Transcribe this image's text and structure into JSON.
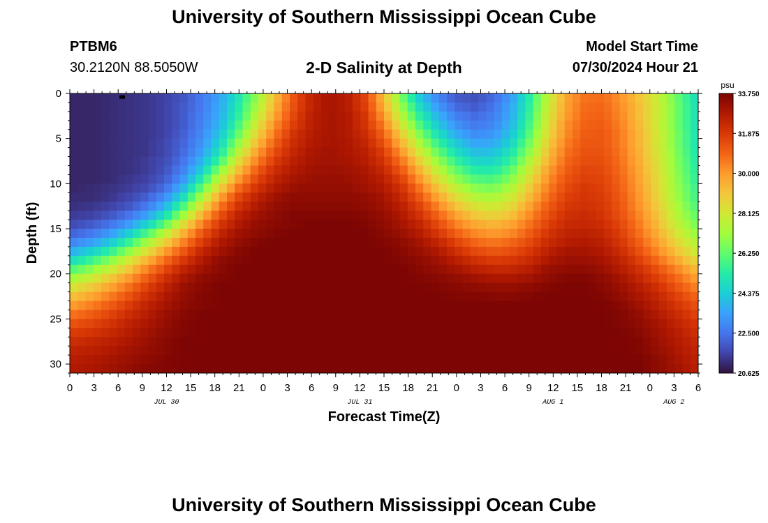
{
  "header": {
    "title": "University of Southern Mississippi Ocean Cube",
    "station": "PTBM6",
    "coordinates": "30.2120N  88.5050W",
    "subtitle": "2-D Salinity at Depth",
    "model_start_label": "Model Start Time",
    "model_start_value": "07/30/2024 Hour 21"
  },
  "footer": {
    "title": "University of Southern Mississippi Ocean Cube"
  },
  "colors": {
    "background": "#ffffff",
    "text": "#000000",
    "colormap": [
      "#30123b",
      "#4145ab",
      "#4675ed",
      "#39a2fc",
      "#1bcfd4",
      "#24eca6",
      "#61fc6c",
      "#a4fc3b",
      "#d1e834",
      "#f3c63a",
      "#fe9b2d",
      "#f36315",
      "#d93806",
      "#b11901",
      "#7a0403"
    ]
  },
  "chart_data": {
    "type": "heatmap",
    "title": "2-D Salinity at Depth",
    "xlabel": "Forecast Time(Z)",
    "ylabel": "Depth (ft)",
    "x_tick_labels": [
      "0",
      "3",
      "6",
      "9",
      "12",
      "15",
      "18",
      "21",
      "0",
      "3",
      "6",
      "9",
      "12",
      "15",
      "18",
      "21",
      "0",
      "3",
      "6",
      "9",
      "12",
      "15",
      "18",
      "21",
      "0",
      "3",
      "6"
    ],
    "x_range_hours": [
      0,
      78
    ],
    "day_labels": [
      {
        "text": "JUL 30",
        "hour": 12
      },
      {
        "text": "JUL 31",
        "hour": 36
      },
      {
        "text": "AUG 1",
        "hour": 60
      },
      {
        "text": "AUG 2",
        "hour": 75
      }
    ],
    "y_tick_labels": [
      "0",
      "5",
      "10",
      "15",
      "20",
      "25",
      "30"
    ],
    "y_range_ft": [
      0,
      31
    ],
    "y_inverted": true,
    "colorbar": {
      "unit": "psu",
      "min": 20.625,
      "max": 33.75,
      "tick_labels": [
        "33.750",
        "31.875",
        "30.000",
        "28.125",
        "26.250",
        "24.375",
        "22.500",
        "20.625"
      ]
    },
    "model_start_marker": {
      "hour": 6.5,
      "depth": 0.2
    },
    "grid": {
      "nx": 80,
      "ny": 31
    },
    "salinity_psu": [
      [
        21.0,
        21.0,
        21.1,
        21.2,
        21.3,
        21.5,
        21.9,
        22.6,
        23.5,
        25.0,
        26.9,
        29.2,
        31.2,
        32.5,
        33.0,
        32.7,
        31.6,
        29.3,
        26.5,
        24.2,
        22.8,
        22.0,
        21.8,
        22.3,
        23.4,
        25.4,
        27.8,
        29.8,
        30.7,
        30.8,
        30.1,
        29.1,
        27.9,
        26.4,
        25.0
      ],
      [
        21.0,
        21.0,
        21.1,
        21.2,
        21.3,
        21.5,
        22.0,
        22.6,
        23.6,
        25.2,
        27.2,
        29.5,
        31.3,
        32.5,
        33.0,
        32.7,
        31.7,
        29.6,
        27.0,
        24.7,
        23.2,
        22.3,
        22.0,
        22.5,
        23.6,
        25.5,
        28.0,
        29.9,
        30.8,
        30.9,
        30.2,
        29.2,
        28.0,
        26.5,
        25.1
      ],
      [
        21.0,
        21.0,
        21.1,
        21.2,
        21.3,
        21.5,
        22.0,
        22.7,
        23.7,
        25.4,
        27.6,
        29.8,
        31.5,
        32.6,
        33.0,
        32.8,
        31.9,
        30.0,
        27.5,
        25.3,
        23.7,
        22.7,
        22.3,
        22.7,
        23.7,
        25.7,
        28.2,
        30.0,
        30.9,
        31.0,
        30.3,
        29.2,
        28.0,
        26.5,
        25.1
      ],
      [
        21.0,
        21.0,
        21.1,
        21.2,
        21.3,
        21.5,
        22.0,
        22.8,
        23.9,
        25.8,
        28.1,
        30.2,
        31.7,
        32.6,
        33.0,
        32.8,
        32.0,
        30.5,
        28.1,
        25.9,
        24.2,
        23.1,
        22.6,
        22.9,
        23.9,
        25.9,
        28.4,
        30.2,
        31.0,
        31.1,
        30.4,
        29.3,
        28.0,
        26.5,
        25.1
      ],
      [
        21.0,
        21.0,
        21.1,
        21.2,
        21.3,
        21.5,
        22.1,
        22.9,
        24.2,
        26.3,
        28.6,
        30.6,
        32.0,
        32.7,
        33.0,
        32.8,
        32.2,
        30.9,
        28.8,
        26.6,
        24.8,
        23.6,
        23.0,
        23.2,
        24.2,
        26.2,
        28.6,
        30.3,
        31.1,
        31.2,
        30.5,
        29.4,
        28.1,
        26.6,
        25.2
      ],
      [
        21.0,
        21.0,
        21.1,
        21.2,
        21.3,
        21.6,
        22.2,
        23.1,
        24.6,
        26.9,
        29.2,
        31.0,
        32.2,
        32.8,
        33.0,
        32.9,
        32.4,
        31.3,
        29.4,
        27.3,
        25.5,
        24.2,
        23.5,
        23.6,
        24.6,
        26.6,
        28.9,
        30.5,
        31.2,
        31.2,
        30.5,
        29.4,
        28.1,
        26.6,
        25.2
      ],
      [
        21.0,
        21.0,
        21.1,
        21.2,
        21.3,
        21.6,
        22.3,
        23.4,
        25.1,
        27.6,
        29.8,
        31.4,
        32.4,
        32.9,
        33.1,
        32.9,
        32.6,
        31.7,
        30.0,
        28.0,
        26.2,
        24.8,
        24.0,
        24.1,
        25.1,
        27.0,
        29.2,
        30.7,
        31.3,
        31.3,
        30.6,
        29.5,
        28.2,
        26.7,
        25.3
      ],
      [
        21.0,
        21.0,
        21.1,
        21.2,
        21.4,
        21.7,
        22.5,
        23.8,
        25.8,
        28.4,
        30.4,
        31.8,
        32.6,
        33.0,
        33.1,
        33.0,
        32.7,
        32.0,
        30.6,
        28.7,
        26.9,
        25.5,
        24.6,
        24.6,
        25.6,
        27.5,
        29.5,
        30.9,
        31.4,
        31.4,
        30.7,
        29.6,
        28.3,
        26.8,
        25.4
      ],
      [
        21.0,
        21.0,
        21.1,
        21.2,
        21.4,
        21.8,
        22.8,
        24.4,
        26.8,
        29.2,
        31.0,
        32.2,
        32.8,
        33.1,
        33.2,
        33.1,
        32.9,
        32.3,
        31.1,
        29.4,
        27.6,
        26.2,
        25.3,
        25.2,
        26.2,
        28.0,
        29.9,
        31.1,
        31.6,
        31.5,
        30.8,
        29.7,
        28.4,
        26.9,
        25.5
      ],
      [
        21.0,
        21.0,
        21.1,
        21.3,
        21.5,
        22.0,
        23.2,
        25.2,
        27.8,
        30.0,
        31.5,
        32.5,
        33.0,
        33.2,
        33.3,
        33.2,
        33.0,
        32.6,
        31.6,
        30.0,
        28.3,
        26.9,
        26.0,
        25.9,
        26.8,
        28.5,
        30.2,
        31.3,
        31.7,
        31.6,
        30.9,
        29.8,
        28.5,
        27.0,
        25.6
      ],
      [
        21.0,
        21.1,
        21.2,
        21.4,
        21.7,
        22.4,
        23.9,
        26.2,
        28.8,
        30.8,
        32.0,
        32.8,
        33.2,
        33.3,
        33.3,
        33.3,
        33.1,
        32.8,
        32.0,
        30.6,
        29.0,
        27.7,
        26.8,
        26.6,
        27.4,
        29.0,
        30.5,
        31.5,
        31.9,
        31.7,
        31.0,
        29.9,
        28.6,
        27.1,
        25.8
      ],
      [
        21.1,
        21.1,
        21.3,
        21.6,
        22.1,
        23.0,
        24.8,
        27.3,
        29.8,
        31.5,
        32.5,
        33.1,
        33.4,
        33.4,
        33.4,
        33.4,
        33.3,
        33.0,
        32.3,
        31.1,
        29.7,
        28.4,
        27.5,
        27.3,
        28.0,
        29.4,
        30.8,
        31.7,
        32.0,
        31.8,
        31.1,
        30.0,
        28.7,
        27.2,
        25.9
      ],
      [
        21.2,
        21.3,
        21.5,
        21.9,
        22.6,
        23.8,
        25.9,
        28.4,
        30.6,
        32.0,
        32.8,
        33.3,
        33.5,
        33.5,
        33.5,
        33.5,
        33.4,
        33.1,
        32.6,
        31.6,
        30.3,
        29.1,
        28.3,
        28.0,
        28.6,
        29.9,
        31.1,
        31.9,
        32.1,
        31.9,
        31.2,
        30.1,
        28.9,
        27.4,
        26.1
      ],
      [
        21.4,
        21.5,
        21.9,
        22.5,
        23.4,
        24.9,
        27.1,
        29.5,
        31.3,
        32.5,
        33.1,
        33.4,
        33.6,
        33.6,
        33.6,
        33.6,
        33.5,
        33.3,
        32.8,
        32.0,
        30.9,
        29.8,
        29.0,
        28.7,
        29.2,
        30.3,
        31.4,
        32.1,
        32.3,
        32.0,
        31.3,
        30.3,
        29.1,
        27.6,
        26.4
      ],
      [
        21.7,
        22.0,
        22.5,
        23.3,
        24.5,
        26.2,
        28.4,
        30.4,
        31.9,
        32.8,
        33.3,
        33.5,
        33.6,
        33.7,
        33.7,
        33.7,
        33.6,
        33.4,
        33.0,
        32.4,
        31.4,
        30.4,
        29.7,
        29.4,
        29.8,
        30.7,
        31.7,
        32.3,
        32.4,
        32.2,
        31.5,
        30.5,
        29.3,
        27.9,
        26.7
      ],
      [
        22.2,
        22.6,
        23.3,
        24.4,
        25.9,
        27.6,
        29.5,
        31.2,
        32.4,
        33.1,
        33.4,
        33.6,
        33.7,
        33.7,
        33.7,
        33.7,
        33.7,
        33.5,
        33.2,
        32.7,
        31.9,
        31.0,
        30.3,
        30.0,
        30.3,
        31.1,
        32.0,
        32.5,
        32.6,
        32.4,
        31.7,
        30.7,
        29.6,
        28.3,
        27.1
      ],
      [
        22.9,
        23.4,
        24.3,
        25.6,
        27.2,
        28.8,
        30.4,
        31.8,
        32.8,
        33.3,
        33.6,
        33.7,
        33.7,
        33.7,
        33.7,
        33.7,
        33.7,
        33.6,
        33.4,
        33.0,
        32.4,
        31.6,
        30.9,
        30.6,
        30.9,
        31.5,
        32.3,
        32.7,
        32.8,
        32.6,
        31.9,
        31.0,
        29.9,
        28.7,
        27.6
      ],
      [
        23.8,
        24.5,
        25.5,
        26.9,
        28.4,
        29.9,
        31.2,
        32.4,
        33.1,
        33.5,
        33.7,
        33.7,
        33.7,
        33.7,
        33.7,
        33.7,
        33.7,
        33.7,
        33.5,
        33.2,
        32.8,
        32.1,
        31.5,
        31.2,
        31.4,
        31.9,
        32.6,
        33.0,
        33.0,
        32.8,
        32.2,
        31.3,
        30.3,
        29.2,
        28.1
      ],
      [
        24.9,
        25.7,
        26.8,
        28.1,
        29.5,
        30.8,
        31.9,
        32.8,
        33.4,
        33.6,
        33.7,
        33.7,
        33.7,
        33.7,
        33.7,
        33.7,
        33.7,
        33.7,
        33.6,
        33.4,
        33.1,
        32.6,
        32.1,
        31.8,
        31.9,
        32.3,
        32.9,
        33.2,
        33.2,
        33.0,
        32.5,
        31.7,
        30.8,
        29.8,
        28.7
      ],
      [
        26.1,
        26.9,
        27.9,
        29.1,
        30.4,
        31.5,
        32.5,
        33.1,
        33.5,
        33.7,
        33.7,
        33.7,
        33.7,
        33.7,
        33.7,
        33.7,
        33.7,
        33.7,
        33.7,
        33.5,
        33.3,
        33.0,
        32.6,
        32.4,
        32.4,
        32.7,
        33.2,
        33.4,
        33.4,
        33.2,
        32.7,
        32.1,
        31.3,
        30.4,
        29.4
      ],
      [
        27.3,
        28.0,
        29.0,
        30.0,
        31.1,
        32.1,
        32.9,
        33.4,
        33.6,
        33.7,
        33.7,
        33.7,
        33.7,
        33.7,
        33.7,
        33.7,
        33.7,
        33.7,
        33.7,
        33.6,
        33.5,
        33.3,
        33.1,
        32.9,
        32.9,
        33.1,
        33.4,
        33.6,
        33.6,
        33.4,
        33.0,
        32.4,
        31.7,
        30.9,
        30.0
      ],
      [
        28.3,
        29.0,
        29.8,
        30.7,
        31.7,
        32.5,
        33.2,
        33.5,
        33.7,
        33.7,
        33.7,
        33.7,
        33.7,
        33.7,
        33.7,
        33.7,
        33.7,
        33.7,
        33.7,
        33.7,
        33.6,
        33.5,
        33.4,
        33.3,
        33.3,
        33.4,
        33.6,
        33.7,
        33.7,
        33.5,
        33.2,
        32.7,
        32.1,
        31.3,
        30.5
      ],
      [
        29.2,
        29.8,
        30.5,
        31.3,
        32.1,
        32.8,
        33.3,
        33.6,
        33.7,
        33.7,
        33.7,
        33.7,
        33.7,
        33.7,
        33.7,
        33.7,
        33.7,
        33.7,
        33.7,
        33.7,
        33.7,
        33.6,
        33.6,
        33.5,
        33.5,
        33.6,
        33.7,
        33.7,
        33.7,
        33.6,
        33.3,
        32.9,
        32.4,
        31.7,
        31.0
      ],
      [
        30.0,
        30.5,
        31.1,
        31.8,
        32.5,
        33.0,
        33.4,
        33.6,
        33.7,
        33.7,
        33.7,
        33.7,
        33.7,
        33.7,
        33.7,
        33.7,
        33.7,
        33.7,
        33.7,
        33.7,
        33.7,
        33.7,
        33.7,
        33.7,
        33.7,
        33.7,
        33.7,
        33.7,
        33.7,
        33.7,
        33.5,
        33.1,
        32.6,
        32.0,
        31.4
      ],
      [
        30.7,
        31.1,
        31.6,
        32.2,
        32.7,
        33.2,
        33.5,
        33.7,
        33.7,
        33.7,
        33.7,
        33.7,
        33.7,
        33.7,
        33.7,
        33.7,
        33.7,
        33.7,
        33.7,
        33.7,
        33.7,
        33.7,
        33.7,
        33.7,
        33.7,
        33.7,
        33.7,
        33.7,
        33.7,
        33.7,
        33.6,
        33.3,
        32.8,
        32.3,
        31.7
      ],
      [
        31.3,
        31.6,
        32.0,
        32.5,
        32.9,
        33.3,
        33.6,
        33.7,
        33.7,
        33.7,
        33.7,
        33.7,
        33.7,
        33.7,
        33.7,
        33.7,
        33.7,
        33.7,
        33.7,
        33.7,
        33.7,
        33.7,
        33.7,
        33.7,
        33.7,
        33.7,
        33.7,
        33.7,
        33.7,
        33.7,
        33.6,
        33.4,
        33.0,
        32.5,
        32.0
      ],
      [
        31.8,
        32.0,
        32.3,
        32.7,
        33.1,
        33.4,
        33.6,
        33.7,
        33.7,
        33.7,
        33.7,
        33.7,
        33.7,
        33.7,
        33.7,
        33.7,
        33.7,
        33.7,
        33.7,
        33.7,
        33.7,
        33.7,
        33.7,
        33.7,
        33.7,
        33.7,
        33.7,
        33.7,
        33.7,
        33.7,
        33.7,
        33.5,
        33.1,
        32.7,
        32.2
      ],
      [
        32.2,
        32.4,
        32.6,
        32.9,
        33.2,
        33.5,
        33.7,
        33.7,
        33.7,
        33.7,
        33.7,
        33.7,
        33.7,
        33.7,
        33.7,
        33.7,
        33.7,
        33.7,
        33.7,
        33.7,
        33.7,
        33.7,
        33.7,
        33.7,
        33.7,
        33.7,
        33.7,
        33.7,
        33.7,
        33.7,
        33.7,
        33.6,
        33.2,
        32.8,
        32.4
      ],
      [
        32.5,
        32.6,
        32.8,
        33.1,
        33.3,
        33.5,
        33.7,
        33.7,
        33.7,
        33.7,
        33.7,
        33.7,
        33.7,
        33.7,
        33.7,
        33.7,
        33.7,
        33.7,
        33.7,
        33.7,
        33.7,
        33.7,
        33.7,
        33.7,
        33.7,
        33.7,
        33.7,
        33.7,
        33.7,
        33.7,
        33.7,
        33.6,
        33.3,
        32.9,
        32.5
      ],
      [
        32.7,
        32.8,
        33.0,
        33.2,
        33.4,
        33.6,
        33.7,
        33.7,
        33.7,
        33.7,
        33.7,
        33.7,
        33.7,
        33.7,
        33.7,
        33.7,
        33.7,
        33.7,
        33.7,
        33.7,
        33.7,
        33.7,
        33.7,
        33.7,
        33.7,
        33.7,
        33.7,
        33.7,
        33.7,
        33.7,
        33.7,
        33.7,
        33.4,
        33.0,
        32.6
      ],
      [
        32.8,
        32.9,
        33.1,
        33.3,
        33.5,
        33.6,
        33.7,
        33.7,
        33.7,
        33.7,
        33.7,
        33.7,
        33.7,
        33.7,
        33.7,
        33.7,
        33.7,
        33.7,
        33.7,
        33.7,
        33.7,
        33.7,
        33.7,
        33.7,
        33.7,
        33.7,
        33.7,
        33.7,
        33.7,
        33.7,
        33.7,
        33.7,
        33.4,
        33.1,
        32.7
      ]
    ]
  }
}
